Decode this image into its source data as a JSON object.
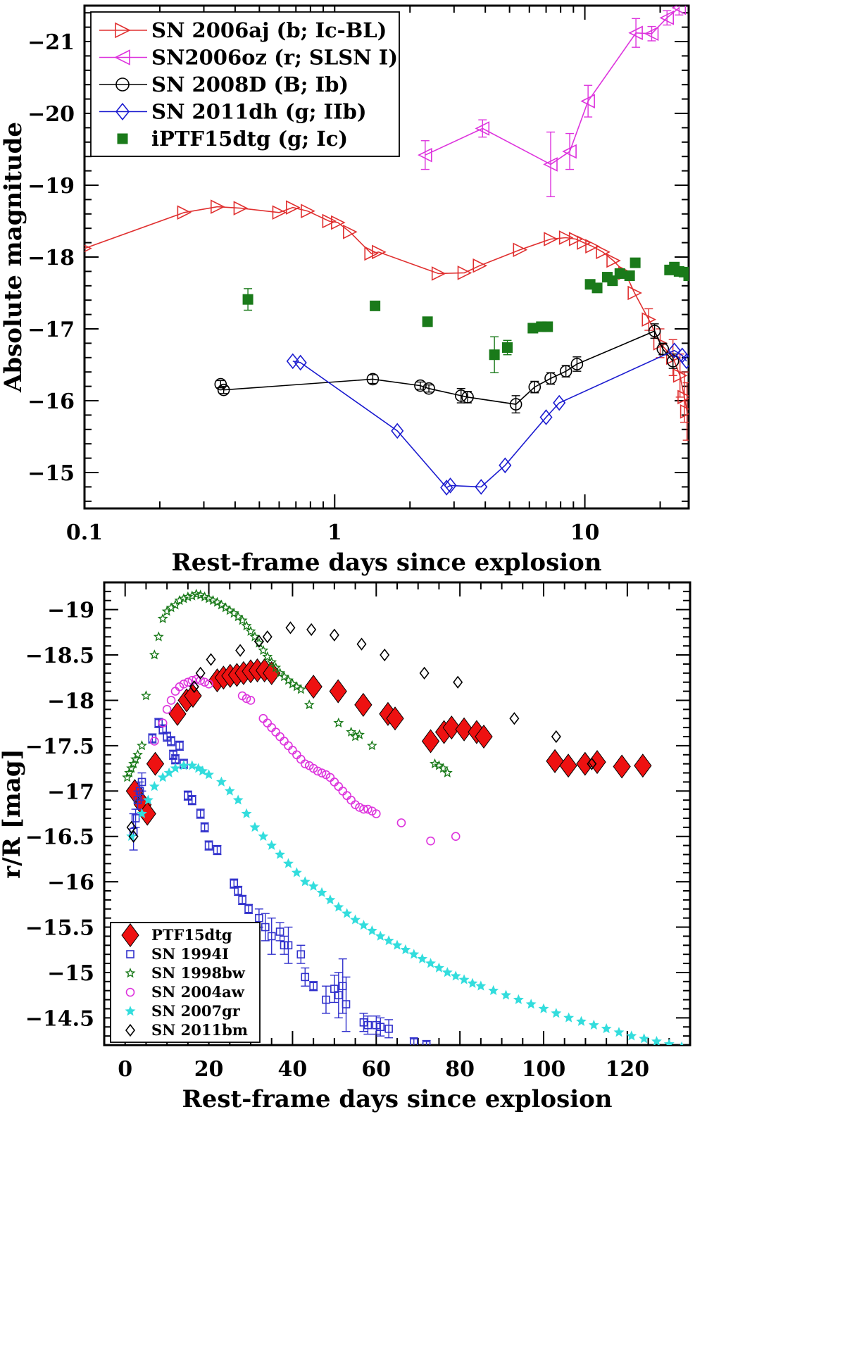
{
  "chart_data": [
    {
      "type": "line",
      "xscale": "log",
      "xlim": [
        0.1,
        26
      ],
      "ylim": [
        -14.5,
        -21.5
      ],
      "xlabel": "Rest-frame days since explosion",
      "ylabel": "Absolute magnitude",
      "xtick_labels": [
        {
          "v": 0.1,
          "t": "0.1"
        },
        {
          "v": 1,
          "t": "1"
        },
        {
          "v": 10,
          "t": "10"
        }
      ],
      "ytick_labels": [
        {
          "v": -15,
          "t": "−15"
        },
        {
          "v": -16,
          "t": "−16"
        },
        {
          "v": -17,
          "t": "−17"
        },
        {
          "v": -18,
          "t": "−18"
        },
        {
          "v": -19,
          "t": "−19"
        },
        {
          "v": -20,
          "t": "−20"
        },
        {
          "v": -21,
          "t": "−21"
        }
      ],
      "legend_position": "top-left",
      "series": [
        {
          "name": "SN 2006aj (b; Ic-BL)",
          "color": "#e03030",
          "marker": "tri-right",
          "line": true,
          "x": [
            0.1,
            0.25,
            0.34,
            0.42,
            0.6,
            0.68,
            0.78,
            0.95,
            1.03,
            1.15,
            1.4,
            1.5,
            2.6,
            3.3,
            3.8,
            5.5,
            7.3,
            8.4,
            9.2,
            9.9,
            10.7,
            11.8,
            13.0,
            14.5,
            15.8,
            18.0,
            20.0,
            22.5,
            24.0,
            25.0,
            25.6
          ],
          "y": [
            -18.12,
            -18.62,
            -18.7,
            -18.68,
            -18.62,
            -18.69,
            -18.64,
            -18.5,
            -18.48,
            -18.35,
            -18.05,
            -18.07,
            -17.77,
            -17.78,
            -17.88,
            -18.1,
            -18.25,
            -18.27,
            -18.25,
            -18.2,
            -18.15,
            -18.07,
            -17.95,
            -17.78,
            -17.5,
            -17.13,
            -16.8,
            -16.6,
            -16.35,
            -16.05,
            -15.85
          ],
          "yerr": [
            0,
            0,
            0,
            0,
            0,
            0,
            0,
            0,
            0,
            0,
            0,
            0,
            0,
            0,
            0,
            0,
            0,
            0,
            0,
            0,
            0,
            0,
            0,
            0,
            0,
            0.15,
            0.2,
            0.25,
            0.3,
            0.35,
            0.4
          ]
        },
        {
          "name": "SN2006oz (r; SLSN I)",
          "color": "#dd33dd",
          "marker": "tri-left",
          "line": true,
          "x": [
            2.3,
            3.9,
            7.3,
            8.7,
            10.3,
            16.0,
            18.5,
            21.3,
            23.8
          ],
          "y": [
            -19.42,
            -19.79,
            -19.29,
            -19.47,
            -20.17,
            -21.12,
            -21.11,
            -21.33,
            -21.47
          ],
          "yerr": [
            0.2,
            0.12,
            0.45,
            0.25,
            0.22,
            0.2,
            0.1,
            0.1,
            0.1
          ]
        },
        {
          "name": "SN 2008D (B; Ib)",
          "color": "#000000",
          "marker": "circle",
          "line": true,
          "x": [
            0.35,
            0.36,
            1.42,
            2.2,
            2.38,
            3.2,
            3.4,
            5.3,
            6.3,
            7.3,
            8.4,
            9.3,
            19.0,
            20.5,
            22.5
          ],
          "y": [
            -16.23,
            -16.15,
            -16.3,
            -16.21,
            -16.17,
            -16.07,
            -16.05,
            -15.95,
            -16.19,
            -16.31,
            -16.41,
            -16.51,
            -16.97,
            -16.72,
            -16.55
          ],
          "yerr": [
            0.05,
            0.05,
            0.06,
            0.05,
            0.05,
            0.1,
            0.08,
            0.12,
            0.08,
            0.08,
            0.08,
            0.1,
            0.1,
            0.08,
            0.1
          ]
        },
        {
          "name": "SN 2011dh (g; IIb)",
          "color": "#1c1cd0",
          "marker": "diamond",
          "line": true,
          "x": [
            0.68,
            0.73,
            1.78,
            2.8,
            2.9,
            3.85,
            4.8,
            7.0,
            7.9,
            22.8,
            24.5,
            25.5
          ],
          "y": [
            -16.55,
            -16.53,
            -15.58,
            -14.79,
            -14.82,
            -14.8,
            -15.1,
            -15.77,
            -15.97,
            -16.7,
            -16.63,
            -16.55
          ],
          "yerr": [
            0,
            0,
            0,
            0,
            0,
            0,
            0,
            0,
            0,
            0,
            0,
            0
          ]
        },
        {
          "name": "iPTF15dtg (g; Ic)",
          "color": "#1a7a1a",
          "marker": "square",
          "line": false,
          "x": [
            0.45,
            1.45,
            2.35,
            4.35,
            4.9,
            6.2,
            6.7,
            7.1,
            10.5,
            11.2,
            12.3,
            12.9,
            13.8,
            15.1,
            15.9,
            21.8,
            22.8,
            23.8,
            24.9,
            26.0
          ],
          "y": [
            -17.41,
            -17.32,
            -17.1,
            -16.64,
            -16.74,
            -17.01,
            -17.03,
            -17.03,
            -17.62,
            -17.57,
            -17.72,
            -17.67,
            -17.77,
            -17.74,
            -17.92,
            -17.82,
            -17.86,
            -17.8,
            -17.79,
            -17.74
          ],
          "yerr": [
            0.15,
            0.05,
            0.05,
            0.25,
            0.1,
            0.05,
            0.06,
            0.05,
            0.05,
            0.05,
            0.05,
            0.05,
            0.05,
            0.05,
            0.05,
            0.05,
            0.05,
            0.05,
            0.05,
            0.05
          ]
        }
      ]
    },
    {
      "type": "scatter",
      "xlim": [
        -5,
        135
      ],
      "ylim": [
        -14.2,
        -19.3
      ],
      "xlabel": "Rest-frame days since explosion",
      "ylabel": "r/R [mag]",
      "xtick_labels": [
        {
          "v": 0,
          "t": "0"
        },
        {
          "v": 20,
          "t": "20"
        },
        {
          "v": 40,
          "t": "40"
        },
        {
          "v": 60,
          "t": "60"
        },
        {
          "v": 80,
          "t": "80"
        },
        {
          "v": 100,
          "t": "100"
        },
        {
          "v": 120,
          "t": "120"
        }
      ],
      "ytick_labels": [
        {
          "v": -14.5,
          "t": "−14.5"
        },
        {
          "v": -15,
          "t": "−15"
        },
        {
          "v": -15.5,
          "t": "−15.5"
        },
        {
          "v": -16,
          "t": "−16"
        },
        {
          "v": -16.5,
          "t": "−16.5"
        },
        {
          "v": -17,
          "t": "−17"
        },
        {
          "v": -17.5,
          "t": "−17.5"
        },
        {
          "v": -18,
          "t": "−18"
        },
        {
          "v": -18.5,
          "t": "−18.5"
        },
        {
          "v": -19,
          "t": "−19"
        }
      ],
      "legend_position": "bottom-left",
      "series": [
        {
          "name": "PTF15dtg",
          "color": "#ee1111",
          "marker": "diamond-filled",
          "x": [
            2.3,
            4.2,
            5.3,
            7.2,
            12.5,
            14.7,
            16.2,
            22.0,
            23.5,
            25.1,
            26.7,
            28.3,
            30.0,
            31.6,
            33.3,
            35.0,
            45.0,
            50.9,
            56.9,
            62.8,
            64.5,
            73.0,
            76.2,
            78.0,
            81.0,
            84.0,
            85.7,
            102.7,
            105.9,
            109.9,
            112.8,
            118.7,
            123.7
          ],
          "y": [
            -17.0,
            -16.85,
            -16.75,
            -17.3,
            -17.85,
            -18.0,
            -18.05,
            -18.22,
            -18.25,
            -18.27,
            -18.28,
            -18.3,
            -18.32,
            -18.33,
            -18.33,
            -18.3,
            -18.15,
            -18.1,
            -17.95,
            -17.85,
            -17.8,
            -17.55,
            -17.65,
            -17.7,
            -17.68,
            -17.65,
            -17.6,
            -17.33,
            -17.28,
            -17.3,
            -17.32,
            -17.27,
            -17.28
          ],
          "yerr": []
        },
        {
          "name": "SN 1994I",
          "color": "#3030cc",
          "marker": "square-open",
          "x": [
            2,
            2.5,
            3.0,
            3.5,
            4.0,
            6.5,
            8.0,
            9.0,
            10.0,
            11.0,
            11.5,
            12.0,
            13.0,
            14.0,
            15.0,
            16.0,
            18.0,
            19.0,
            20.0,
            22.0,
            26.0,
            27.0,
            28.0,
            29.5,
            32.0,
            33.5,
            35.0,
            37.0,
            38.0,
            39.0,
            42.0,
            43.0,
            45.0,
            48.0,
            50.0,
            51.0,
            52.0,
            52.8,
            57.0,
            58.0,
            60.0,
            61.0,
            63.0,
            69.0,
            72.0
          ],
          "y": [
            -16.55,
            -16.7,
            -16.9,
            -17.0,
            -17.1,
            -17.58,
            -17.75,
            -17.68,
            -17.6,
            -17.55,
            -17.4,
            -17.35,
            -17.5,
            -17.3,
            -16.95,
            -16.9,
            -16.75,
            -16.6,
            -16.4,
            -16.35,
            -15.98,
            -15.9,
            -15.8,
            -15.7,
            -15.6,
            -15.5,
            -15.4,
            -15.45,
            -15.3,
            -15.3,
            -15.2,
            -14.95,
            -14.85,
            -14.7,
            -14.82,
            -14.75,
            -14.85,
            -14.65,
            -14.45,
            -14.42,
            -14.42,
            -14.4,
            -14.38,
            -14.23,
            -14.2
          ],
          "yerr": [
            0.2,
            0.1,
            0.1,
            0.1,
            0.1,
            0.05,
            0.05,
            0.05,
            0.05,
            0.05,
            0.05,
            0.05,
            0.05,
            0.05,
            0.05,
            0.05,
            0.05,
            0.05,
            0.05,
            0.05,
            0.05,
            0.05,
            0.05,
            0.05,
            0.1,
            0.15,
            0.2,
            0.1,
            0.1,
            0.2,
            0.1,
            0.1,
            0.05,
            0.15,
            0.15,
            0.25,
            0.3,
            0.3,
            0.1,
            0.1,
            0.1,
            0.1,
            0.1,
            0.05,
            0.05
          ],
          "yerr_note": "approximate"
        },
        {
          "name": "SN 1998bw",
          "color": "#1a7a1a",
          "marker": "star-open",
          "x": [
            0.5,
            1.0,
            1.5,
            2.0,
            2.5,
            3.0,
            4.0,
            5.0,
            7.0,
            8.0,
            9.0,
            10.0,
            11.0,
            12.0,
            13.0,
            14.0,
            15.0,
            16.0,
            17.0,
            18.0,
            19.0,
            20.0,
            21.0,
            22.0,
            23.0,
            24.0,
            25.0,
            26.0,
            27.0,
            28.0,
            29.0,
            30.0,
            31.0,
            32.0,
            33.0,
            34.0,
            35.0,
            36.0,
            37.0,
            38.0,
            39.0,
            40.0,
            41.0,
            42.0,
            44.0,
            51.0,
            54.0,
            55.0,
            56.0,
            59.0,
            74.0,
            75.0,
            76.0,
            77.0
          ],
          "y": [
            -17.15,
            -17.2,
            -17.25,
            -17.3,
            -17.35,
            -17.4,
            -17.5,
            -18.05,
            -18.5,
            -18.7,
            -18.9,
            -18.98,
            -19.02,
            -19.05,
            -19.1,
            -19.12,
            -19.14,
            -19.15,
            -19.17,
            -19.16,
            -19.14,
            -19.12,
            -19.1,
            -19.08,
            -19.05,
            -19.02,
            -18.99,
            -18.96,
            -18.92,
            -18.88,
            -18.82,
            -18.76,
            -18.7,
            -18.63,
            -18.55,
            -18.48,
            -18.42,
            -18.36,
            -18.3,
            -18.26,
            -18.22,
            -18.18,
            -18.15,
            -18.12,
            -17.95,
            -17.75,
            -17.65,
            -17.6,
            -17.62,
            -17.5,
            -17.3,
            -17.28,
            -17.25,
            -17.2
          ],
          "yerr": []
        },
        {
          "name": "SN 2004aw",
          "color": "#dd33dd",
          "marker": "circle-open",
          "x": [
            7.0,
            9.0,
            10.0,
            11.0,
            12.0,
            13.0,
            14.0,
            15.0,
            16.0,
            17.0,
            18.0,
            19.0,
            20.0,
            28.0,
            29.0,
            30.0,
            33.0,
            34.0,
            35.0,
            36.0,
            37.0,
            38.0,
            39.0,
            40.0,
            41.0,
            42.0,
            43.0,
            44.0,
            45.0,
            46.0,
            47.0,
            48.0,
            49.0,
            50.0,
            51.0,
            52.0,
            53.0,
            54.0,
            55.0,
            56.0,
            57.0,
            58.0,
            59.0,
            60.0,
            66.0,
            73.0,
            79.0
          ],
          "y": [
            -17.55,
            -17.75,
            -17.9,
            -18.0,
            -18.1,
            -18.15,
            -18.18,
            -18.2,
            -18.22,
            -18.23,
            -18.22,
            -18.2,
            -18.18,
            -18.05,
            -18.02,
            -18.0,
            -17.8,
            -17.75,
            -17.7,
            -17.65,
            -17.6,
            -17.55,
            -17.5,
            -17.45,
            -17.4,
            -17.35,
            -17.3,
            -17.28,
            -17.25,
            -17.22,
            -17.2,
            -17.18,
            -17.15,
            -17.1,
            -17.05,
            -17.0,
            -16.95,
            -16.9,
            -16.85,
            -16.82,
            -16.8,
            -16.8,
            -16.78,
            -16.75,
            -16.65,
            -16.45,
            -16.5
          ],
          "yerr": []
        },
        {
          "name": "SN 2007gr",
          "color": "#33dddd",
          "marker": "star-filled",
          "x": [
            1.5,
            4.0,
            5.5,
            7.0,
            9.0,
            10.5,
            12.0,
            14.0,
            16.0,
            17.5,
            18.5,
            20.0,
            23.0,
            25.0,
            27.0,
            29.0,
            31.0,
            33.0,
            35.0,
            37.0,
            39.0,
            41.0,
            43.0,
            45.0,
            47.0,
            49.0,
            51.0,
            53.0,
            55.0,
            57.0,
            59.0,
            61.0,
            63.0,
            65.0,
            67.0,
            69.0,
            71.0,
            73.0,
            75.0,
            77.0,
            79.0,
            81.0,
            83.0,
            85.0,
            88.0,
            91.0,
            94.0,
            97.0,
            100.0,
            103.0,
            106.0,
            109.0,
            112.0,
            115.0,
            118.0,
            121.0,
            124.0,
            127.0,
            130.0,
            133.0
          ],
          "y": [
            -16.5,
            -16.75,
            -16.9,
            -17.05,
            -17.15,
            -17.2,
            -17.25,
            -17.28,
            -17.28,
            -17.25,
            -17.22,
            -17.18,
            -17.1,
            -17.0,
            -16.9,
            -16.75,
            -16.6,
            -16.5,
            -16.4,
            -16.3,
            -16.2,
            -16.1,
            -16.0,
            -15.95,
            -15.88,
            -15.8,
            -15.72,
            -15.65,
            -15.58,
            -15.52,
            -15.46,
            -15.4,
            -15.35,
            -15.3,
            -15.25,
            -15.2,
            -15.15,
            -15.1,
            -15.05,
            -15.0,
            -14.96,
            -14.92,
            -14.88,
            -14.85,
            -14.8,
            -14.75,
            -14.7,
            -14.65,
            -14.6,
            -14.55,
            -14.5,
            -14.46,
            -14.42,
            -14.38,
            -14.34,
            -14.3,
            -14.27,
            -14.24,
            -14.21,
            -14.18
          ],
          "yerr": []
        },
        {
          "name": "SN 2011bm",
          "color": "#000000",
          "marker": "diamond-open",
          "x": [
            1.5,
            2.0,
            16.5,
            18.0,
            20.5,
            27.5,
            32.0,
            34.0,
            39.5,
            44.5,
            50.0,
            56.5,
            62.0,
            71.5,
            79.5,
            93.0,
            103.0,
            111.5
          ],
          "y": [
            -16.6,
            -16.5,
            -18.15,
            -18.3,
            -18.45,
            -18.55,
            -18.65,
            -18.7,
            -18.8,
            -18.78,
            -18.72,
            -18.62,
            -18.5,
            -18.3,
            -18.2,
            -17.8,
            -17.6,
            -17.3
          ],
          "yerr": []
        }
      ]
    }
  ]
}
